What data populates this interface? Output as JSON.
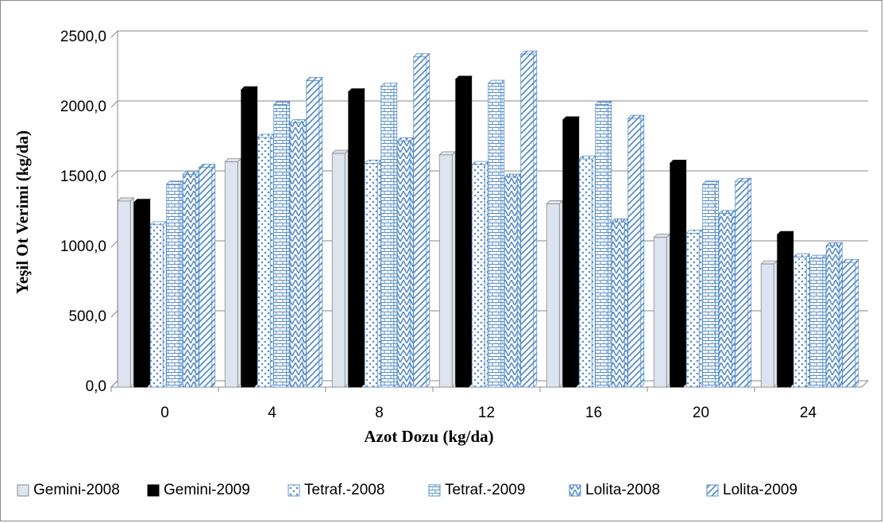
{
  "chart_data": {
    "type": "bar",
    "x_label": "Azot Dozu (kg/da)",
    "y_label": "Yeşil Ot Verimi (kg/da)",
    "categories": [
      "0",
      "4",
      "8",
      "12",
      "16",
      "20",
      "24"
    ],
    "series": [
      {
        "name": "Gemini-2008",
        "color": "#dde4ef",
        "pattern": "solid",
        "values": [
          1330,
          1610,
          1670,
          1660,
          1310,
          1070,
          880
        ]
      },
      {
        "name": "Gemini-2009",
        "color": "#000000",
        "pattern": "solid",
        "values": [
          1320,
          2125,
          2110,
          2200,
          1910,
          1600,
          1090
        ]
      },
      {
        "name": "Tetraf.-2008",
        "color": "#5a8fc8",
        "pattern": "dots",
        "values": [
          1160,
          1785,
          1600,
          1590,
          1630,
          1100,
          930
        ]
      },
      {
        "name": "Tetraf.-2009",
        "color": "#5a8fc8",
        "pattern": "bricks",
        "values": [
          1450,
          2020,
          2150,
          2170,
          2020,
          1450,
          920
        ]
      },
      {
        "name": "Lolita-2008",
        "color": "#5a8fc8",
        "pattern": "chevron",
        "values": [
          1520,
          1890,
          1760,
          1500,
          1180,
          1240,
          1010
        ]
      },
      {
        "name": "Lolita-2009",
        "color": "#5a8fc8",
        "pattern": "diagonal",
        "values": [
          1570,
          2190,
          2360,
          2380,
          1920,
          1470,
          890
        ]
      }
    ],
    "ylim": [
      0,
      2500
    ],
    "yticks": [
      {
        "value": 0,
        "label": "0,0"
      },
      {
        "value": 500,
        "label": "500,0"
      },
      {
        "value": 1000,
        "label": "1000,0"
      },
      {
        "value": 1500,
        "label": "1500,0"
      },
      {
        "value": 2000,
        "label": "2000,0"
      },
      {
        "value": 2500,
        "label": "2500,0"
      }
    ],
    "grid": true
  }
}
